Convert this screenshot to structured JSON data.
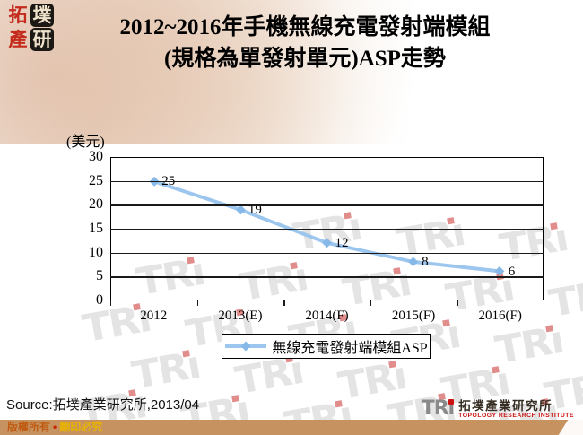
{
  "header": {
    "seal_chars": [
      "拓",
      "墣",
      "產",
      "研"
    ],
    "title_line1": "2012~2016年手機無線充電發射端模組",
    "title_line2": "(規格為單發射單元)ASP走勢"
  },
  "chart_data": {
    "type": "line",
    "title": "2012~2016年手機無線充電發射端模組(規格為單發射單元)ASP走勢",
    "unit_label": "(美元)",
    "categories": [
      "2012",
      "2013(E)",
      "2014(F)",
      "2015(F)",
      "2016(F)"
    ],
    "series": [
      {
        "name": "無線充電發射端模組ASP",
        "values": [
          25,
          19,
          12,
          8,
          6
        ],
        "color": "#9cc6ee",
        "marker_color": "#86b8e8",
        "marker": "diamond"
      }
    ],
    "ylim": [
      0,
      30
    ],
    "yticks": [
      0,
      5,
      10,
      15,
      20,
      25,
      30
    ],
    "grid": true,
    "legend_position": "bottom",
    "data_labels": true
  },
  "footer": {
    "source": "Source:拓墣產業研究所,2013/04",
    "copyright": {
      "left": "版權所有",
      "separator": "•",
      "right": "翻印必究"
    },
    "tri_logo": {
      "wordmark": "TRi",
      "cn_name": "拓墣產業研究所",
      "en_name": "TOPOLOGY RESEARCH INSTITUTE"
    }
  },
  "watermark_text": "TRi",
  "colors": {
    "line": "#9cc6ee",
    "marker": "#86b8e8",
    "copyright_bar": "#c6925f",
    "copyright_text_left": "#c05a10",
    "copyright_text_separator": "#cc2200",
    "copyright_text_right": "#e8b400",
    "tri_gray": "#8a8a8a",
    "tri_red": "#cc1111"
  }
}
